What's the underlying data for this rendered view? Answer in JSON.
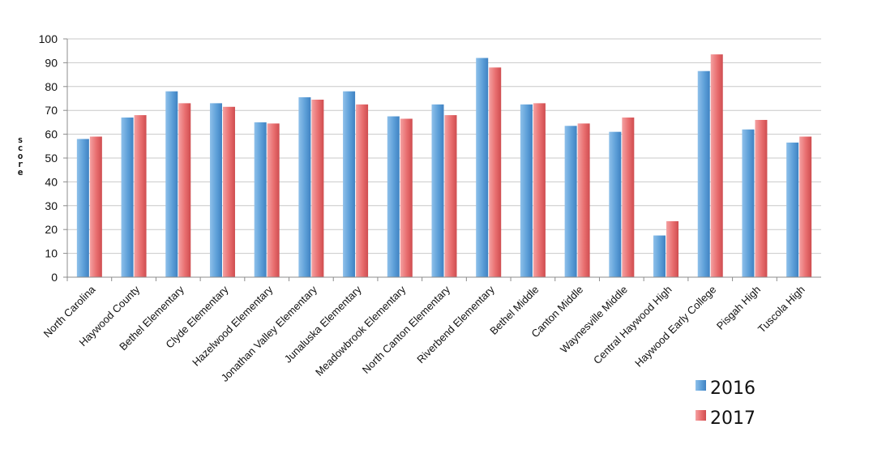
{
  "chart_data": {
    "type": "bar",
    "title": "",
    "xlabel": "",
    "ylabel": "Score",
    "ylim": [
      0,
      100
    ],
    "yticks": [
      0,
      10,
      20,
      30,
      40,
      50,
      60,
      70,
      80,
      90,
      100
    ],
    "grid": true,
    "legend_position": "bottom-right",
    "categories": [
      "North Carolina",
      "Haywood County",
      "Bethel Elementary",
      "Clyde Elementary",
      "Hazelwood Elementary",
      "Jonathan Valley Elementary",
      "Junaluska Elementary",
      "Meadowbrook Elementary",
      "North Canton Elementary",
      "Riverbend Elementary",
      "Bethel Middle",
      "Canton Middle",
      "Waynesville Middle",
      "Central Haywood High",
      "Haywood Early College",
      "Pisgah High",
      "Tuscola High"
    ],
    "series": [
      {
        "name": "2016",
        "color": "#5b9bd5",
        "values": [
          58,
          67,
          78,
          73,
          65,
          75.5,
          78,
          67.5,
          72.5,
          92,
          72.5,
          63.5,
          61,
          17.5,
          86.5,
          62,
          56.5
        ]
      },
      {
        "name": "2017",
        "color": "#e8696b",
        "values": [
          59,
          68,
          73,
          71.5,
          64.5,
          74.5,
          72.5,
          66.5,
          68,
          88,
          73,
          64.5,
          67,
          23.5,
          93.5,
          66,
          59
        ]
      }
    ]
  }
}
